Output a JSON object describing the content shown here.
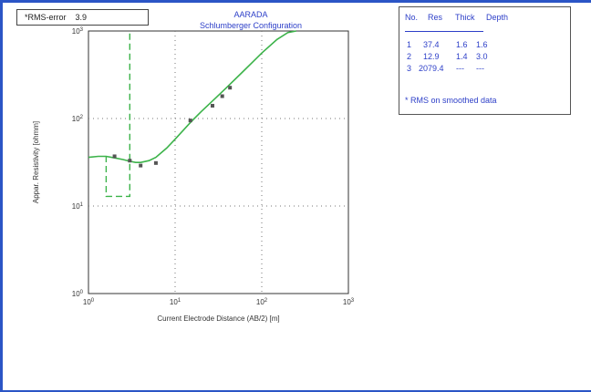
{
  "rms_box": {
    "label": "*RMS-error",
    "value": "3.9"
  },
  "chart_title": {
    "line1": "AARADA",
    "line2": "Schlumberger Configuration"
  },
  "table": {
    "headers": [
      "No.",
      "Res",
      "Thick",
      "Depth"
    ],
    "rows": [
      [
        "1",
        "37.4",
        "1.6",
        "1.6"
      ],
      [
        "2",
        "12.9",
        "1.4",
        "3.0"
      ],
      [
        "3",
        "2079.4",
        "---",
        "---"
      ]
    ],
    "note": "* RMS on smoothed data"
  },
  "colors": {
    "frame": "#2b55c6",
    "table_text": "#2d3fc8",
    "curve": "#3cb34a",
    "points": "#555555"
  },
  "chart_data": {
    "type": "scatter",
    "title": "AARADA Schlumberger Configuration",
    "xlabel": "Current Electrode Distance (AB/2) [m]",
    "ylabel": "Appar. Resistivity [ohmm]",
    "x_scale": "log",
    "y_scale": "log",
    "xlim": [
      1,
      1000
    ],
    "ylim": [
      1,
      1000
    ],
    "x_tick_labels": [
      "10^0",
      "10^1",
      "10^2",
      "10^3"
    ],
    "y_tick_labels": [
      "10^0",
      "10^1",
      "10^2",
      "10^3"
    ],
    "grid": true,
    "series": [
      {
        "kind": "observed",
        "x": [
          2,
          3,
          4,
          6,
          15,
          27,
          35,
          43
        ],
        "y": [
          37,
          33,
          29,
          31,
          95,
          140,
          180,
          225
        ]
      },
      {
        "kind": "model curve",
        "x": [
          1,
          1.3,
          1.6,
          2,
          2.5,
          3,
          3.5,
          4,
          5,
          6,
          8,
          10,
          15,
          20,
          30,
          40,
          60,
          80,
          100,
          150,
          200,
          250
        ],
        "y": [
          36,
          37,
          37,
          35.5,
          34,
          32.5,
          31.5,
          31.5,
          33,
          36,
          46,
          58,
          90,
          120,
          175,
          230,
          340,
          450,
          560,
          800,
          960,
          1000
        ]
      },
      {
        "kind": "layer model",
        "x": [
          1.6,
          1.6,
          3.0,
          3.0
        ],
        "y": [
          37.4,
          12.9,
          12.9,
          1000
        ]
      }
    ]
  }
}
